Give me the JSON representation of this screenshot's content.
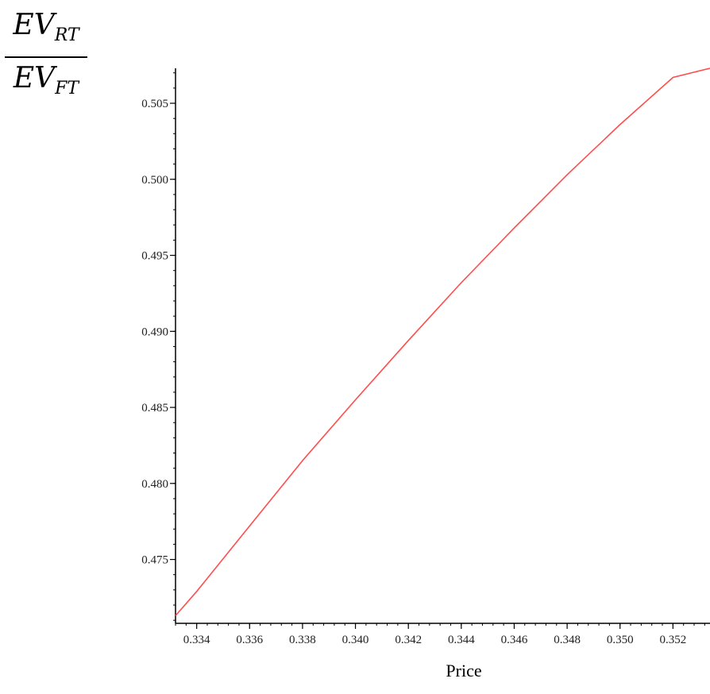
{
  "chart_data": {
    "type": "line",
    "title": "",
    "xlabel": "Price",
    "ylabel_numerator": {
      "base": "EV",
      "sub": "RT"
    },
    "ylabel_denominator": {
      "base": "EV",
      "sub": "FT"
    },
    "xlim": [
      0.3332,
      0.3534
    ],
    "ylim": [
      0.4708,
      0.5073
    ],
    "x_ticks": [
      0.334,
      0.336,
      0.338,
      0.34,
      0.342,
      0.344,
      0.346,
      0.348,
      0.35,
      0.352
    ],
    "x_tick_labels": [
      "0.334",
      "0.336",
      "0.338",
      "0.340",
      "0.342",
      "0.344",
      "0.346",
      "0.348",
      "0.350",
      "0.352"
    ],
    "y_ticks": [
      0.475,
      0.48,
      0.485,
      0.49,
      0.495,
      0.5,
      0.505
    ],
    "y_tick_labels": [
      "0.475",
      "0.480",
      "0.485",
      "0.490",
      "0.495",
      "0.500",
      "0.505"
    ],
    "grid": false,
    "series": [
      {
        "color": "#ff4d4d",
        "x": [
          0.3332,
          0.334,
          0.336,
          0.338,
          0.34,
          0.342,
          0.344,
          0.346,
          0.348,
          0.35,
          0.352,
          0.3534
        ],
        "y": [
          0.4713,
          0.4729,
          0.4772,
          0.4815,
          0.4855,
          0.4894,
          0.4932,
          0.4968,
          0.5003,
          0.5036,
          0.5067,
          0.5073
        ]
      }
    ]
  }
}
